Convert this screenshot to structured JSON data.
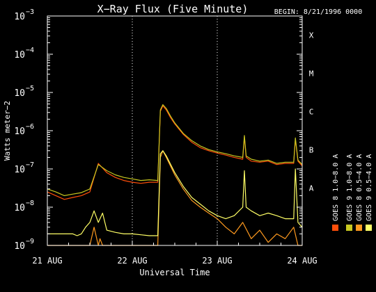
{
  "chart_data": {
    "type": "line",
    "title": "X−Ray Flux (Five Minute)",
    "begin_label": "BEGIN: 8/21/1996 0000",
    "ylabel": "Watts meter−2",
    "xlabel": "Universal Time",
    "yscale": "log",
    "ylim": [
      1e-09,
      0.001
    ],
    "xlim": [
      0,
      3
    ],
    "grid": "vertical dotted lines at day boundaries",
    "colors": {
      "background": "#000000",
      "axes": "#ffffff",
      "grid": "#ffffff"
    },
    "y_ticks": [
      {
        "value": 1e-09,
        "base": "10",
        "exp": "−9"
      },
      {
        "value": 1e-08,
        "base": "10",
        "exp": "−8"
      },
      {
        "value": 1e-07,
        "base": "10",
        "exp": "−7"
      },
      {
        "value": 1e-06,
        "base": "10",
        "exp": "−6"
      },
      {
        "value": 1e-05,
        "base": "10",
        "exp": "−5"
      },
      {
        "value": 0.0001,
        "base": "10",
        "exp": "−4"
      },
      {
        "value": 0.001,
        "base": "10",
        "exp": "−3"
      }
    ],
    "x_ticks": [
      {
        "value": 0,
        "label": "21 AUG"
      },
      {
        "value": 1,
        "label": "22 AUG"
      },
      {
        "value": 2,
        "label": "23 AUG"
      },
      {
        "value": 3,
        "label": "24 AUG"
      }
    ],
    "flare_classes": [
      {
        "label": "A",
        "value": 1e-08
      },
      {
        "label": "B",
        "value": 1e-07
      },
      {
        "label": "C",
        "value": 1e-06
      },
      {
        "label": "M",
        "value": 1e-05
      },
      {
        "label": "X",
        "value": 0.0001
      }
    ],
    "series": [
      {
        "name": "GOES 8 1.0−8.0 A",
        "color": "#ff4e0a",
        "x": [
          0,
          0.1,
          0.2,
          0.3,
          0.4,
          0.5,
          0.6,
          0.7,
          0.8,
          0.9,
          1.0,
          1.1,
          1.2,
          1.3,
          1.33,
          1.36,
          1.4,
          1.45,
          1.5,
          1.6,
          1.7,
          1.8,
          1.9,
          2.0,
          2.1,
          2.2,
          2.3,
          2.32,
          2.34,
          2.4,
          2.5,
          2.6,
          2.7,
          2.8,
          2.9,
          2.92,
          2.95,
          3.0
        ],
        "y": [
          2.5e-08,
          2e-08,
          1.6e-08,
          1.8e-08,
          2e-08,
          2.5e-08,
          1.4e-07,
          8e-08,
          6e-08,
          5e-08,
          4.5e-08,
          4.2e-08,
          4.5e-08,
          4.5e-08,
          3.2e-06,
          4.5e-06,
          3.5e-06,
          2.2e-06,
          1.5e-06,
          8e-07,
          5e-07,
          3.6e-07,
          3e-07,
          2.6e-07,
          2.3e-07,
          2e-07,
          1.8e-07,
          7e-07,
          2e-07,
          1.6e-07,
          1.5e-07,
          1.6e-07,
          1.3e-07,
          1.4e-07,
          1.4e-07,
          6e-07,
          1.6e-07,
          1.2e-07
        ]
      },
      {
        "name": "GOES 8 0.5−4.0 A",
        "color": "#ff9a1f",
        "x": [
          0,
          0.5,
          0.55,
          0.6,
          0.62,
          0.65,
          0.7,
          0.8,
          0.9,
          1.0,
          1.1,
          1.2,
          1.3,
          1.33,
          1.36,
          1.4,
          1.5,
          1.6,
          1.7,
          1.8,
          1.9,
          2.0,
          2.1,
          2.2,
          2.3,
          2.4,
          2.5,
          2.6,
          2.7,
          2.8,
          2.9,
          2.95,
          3.0
        ],
        "y": [
          1e-09,
          1e-09,
          3e-09,
          1e-09,
          1.5e-09,
          1e-09,
          1e-09,
          1e-09,
          1e-09,
          1e-09,
          1e-09,
          1e-09,
          1e-09,
          2e-07,
          3e-07,
          2e-07,
          7e-08,
          3e-08,
          1.5e-08,
          1e-08,
          7e-09,
          5e-09,
          3e-09,
          2e-09,
          4e-09,
          1.5e-09,
          2.5e-09,
          1.2e-09,
          2e-09,
          1.5e-09,
          3e-09,
          1e-09,
          1e-09
        ]
      },
      {
        "name": "GOES 9 1.0−8.0 A",
        "color": "#c8c820",
        "x": [
          0,
          0.1,
          0.2,
          0.3,
          0.4,
          0.5,
          0.6,
          0.7,
          0.8,
          0.9,
          1.0,
          1.1,
          1.2,
          1.3,
          1.33,
          1.36,
          1.4,
          1.45,
          1.5,
          1.6,
          1.7,
          1.8,
          1.9,
          2.0,
          2.1,
          2.2,
          2.3,
          2.32,
          2.34,
          2.4,
          2.5,
          2.6,
          2.7,
          2.8,
          2.9,
          2.92,
          2.95,
          3.0
        ],
        "y": [
          3e-08,
          2.5e-08,
          2e-08,
          2.2e-08,
          2.4e-08,
          3e-08,
          1.3e-07,
          9e-08,
          7e-08,
          6e-08,
          5.5e-08,
          5e-08,
          5.2e-08,
          5e-08,
          3.5e-06,
          4.8e-06,
          3.8e-06,
          2.4e-06,
          1.6e-06,
          8.5e-07,
          5.5e-07,
          4e-07,
          3.2e-07,
          2.8e-07,
          2.5e-07,
          2.2e-07,
          2e-07,
          7.5e-07,
          2.2e-07,
          1.8e-07,
          1.6e-07,
          1.7e-07,
          1.4e-07,
          1.5e-07,
          1.5e-07,
          6.5e-07,
          1.7e-07,
          1.3e-07
        ]
      },
      {
        "name": "GOES 9 0.5−4.0 A",
        "color": "#ffff66",
        "x": [
          0,
          0.3,
          0.35,
          0.4,
          0.45,
          0.5,
          0.55,
          0.6,
          0.65,
          0.7,
          0.8,
          0.9,
          1.0,
          1.1,
          1.2,
          1.3,
          1.33,
          1.36,
          1.4,
          1.5,
          1.6,
          1.7,
          1.8,
          1.9,
          2.0,
          2.1,
          2.2,
          2.3,
          2.32,
          2.34,
          2.4,
          2.5,
          2.6,
          2.7,
          2.8,
          2.9,
          2.92,
          2.95,
          3.0
        ],
        "y": [
          2e-09,
          2e-09,
          1.8e-09,
          2e-09,
          3e-09,
          4e-09,
          8e-09,
          4e-09,
          7e-09,
          2.5e-09,
          2.2e-09,
          2e-09,
          2e-09,
          1.9e-09,
          1.8e-09,
          1.8e-09,
          2.5e-07,
          3e-07,
          2.2e-07,
          8e-08,
          3.5e-08,
          1.8e-08,
          1.2e-08,
          8e-09,
          6e-09,
          5e-09,
          6e-09,
          1e-08,
          9e-08,
          1e-08,
          8e-09,
          6e-09,
          7e-09,
          6e-09,
          5e-09,
          5e-09,
          1e-07,
          4e-09,
          3e-09
        ]
      }
    ]
  }
}
